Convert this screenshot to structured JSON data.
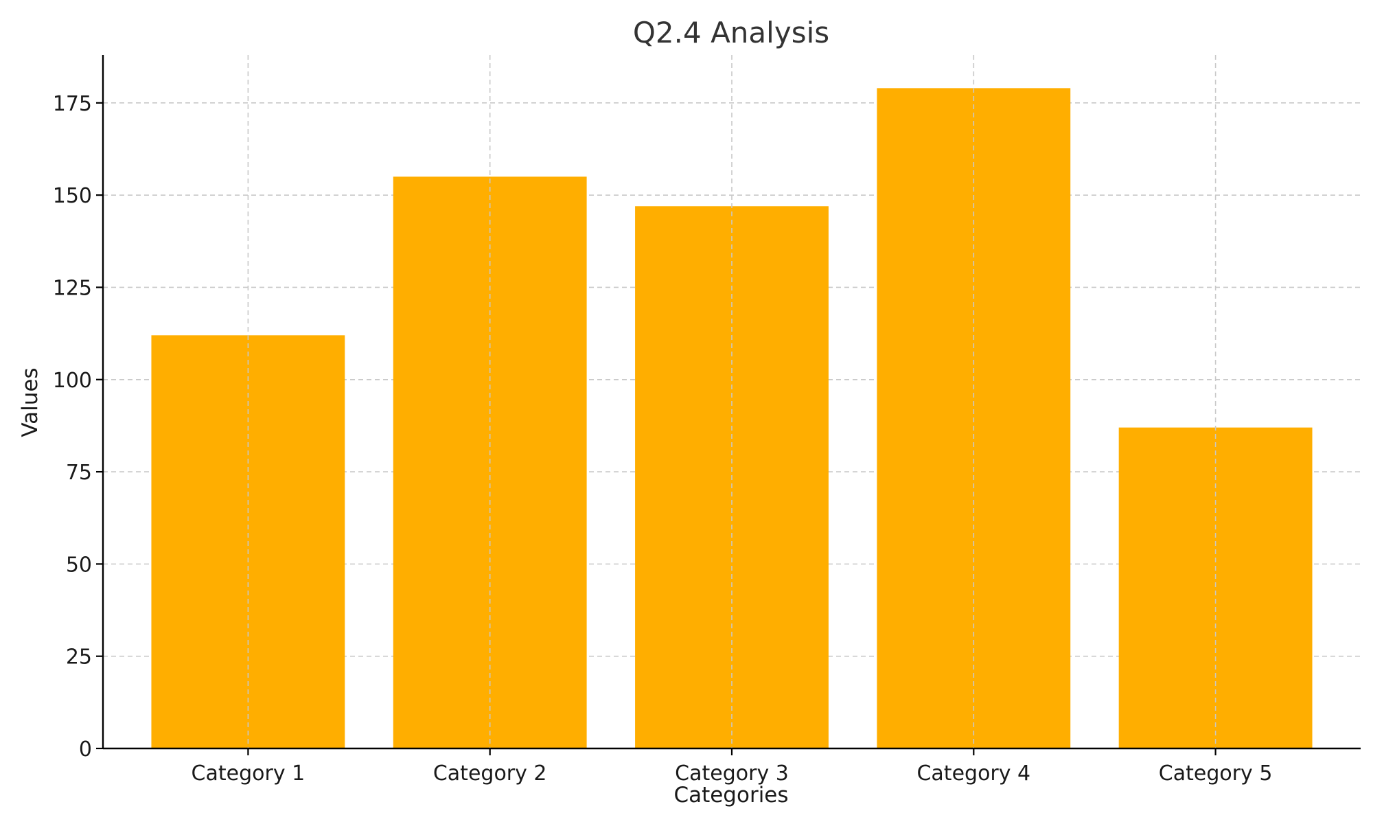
{
  "chart_data": {
    "type": "bar",
    "title": "Q2.4 Analysis",
    "xlabel": "Categories",
    "ylabel": "Values",
    "categories": [
      "Category 1",
      "Category 2",
      "Category 3",
      "Category 4",
      "Category 5"
    ],
    "values": [
      112,
      155,
      147,
      179,
      87
    ],
    "ylim": [
      0,
      188
    ],
    "yticks": [
      0,
      25,
      50,
      75,
      100,
      125,
      150,
      175
    ],
    "grid": true,
    "bar_color": "#FFAE00"
  }
}
